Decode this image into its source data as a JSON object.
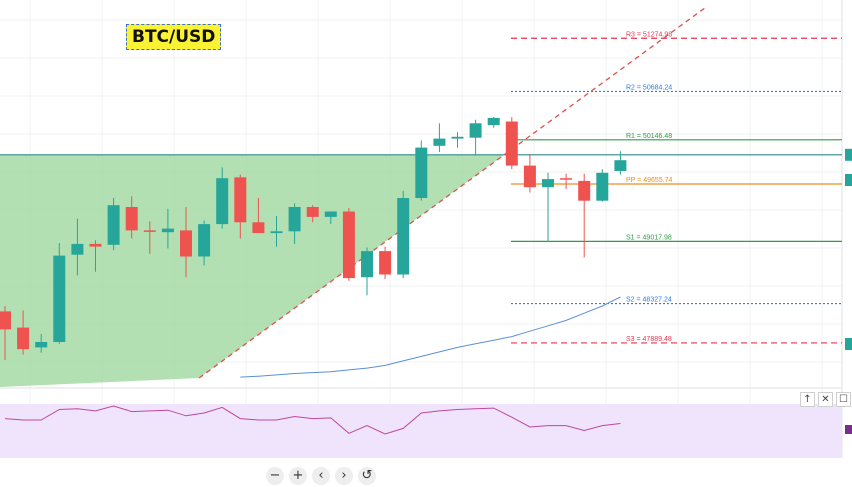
{
  "symbol": "BTC/USD",
  "chart_data": {
    "type": "candlestick",
    "instrument": "BTC/USD",
    "ylim": [
      47400,
      51700
    ],
    "candles": [
      {
        "o": 48240,
        "h": 48300,
        "l": 47700,
        "c": 48040
      },
      {
        "o": 48060,
        "h": 48250,
        "l": 47760,
        "c": 47820
      },
      {
        "o": 47840,
        "h": 47990,
        "l": 47780,
        "c": 47900
      },
      {
        "o": 47900,
        "h": 49000,
        "l": 47880,
        "c": 48860
      },
      {
        "o": 48870,
        "h": 49270,
        "l": 48640,
        "c": 48990
      },
      {
        "o": 48990,
        "h": 49030,
        "l": 48680,
        "c": 48960
      },
      {
        "o": 48980,
        "h": 49500,
        "l": 48920,
        "c": 49420
      },
      {
        "o": 49400,
        "h": 49520,
        "l": 49050,
        "c": 49140
      },
      {
        "o": 49140,
        "h": 49240,
        "l": 48880,
        "c": 49130
      },
      {
        "o": 49120,
        "h": 49380,
        "l": 48940,
        "c": 49160
      },
      {
        "o": 49140,
        "h": 49400,
        "l": 48620,
        "c": 48850
      },
      {
        "o": 48850,
        "h": 49250,
        "l": 48750,
        "c": 49210
      },
      {
        "o": 49210,
        "h": 49840,
        "l": 49160,
        "c": 49720
      },
      {
        "o": 49730,
        "h": 49760,
        "l": 49050,
        "c": 49230
      },
      {
        "o": 49230,
        "h": 49500,
        "l": 49130,
        "c": 49110
      },
      {
        "o": 49110,
        "h": 49300,
        "l": 48960,
        "c": 49130
      },
      {
        "o": 49130,
        "h": 49440,
        "l": 48990,
        "c": 49400
      },
      {
        "o": 49400,
        "h": 49420,
        "l": 49230,
        "c": 49290
      },
      {
        "o": 49290,
        "h": 49350,
        "l": 49210,
        "c": 49350
      },
      {
        "o": 49350,
        "h": 49390,
        "l": 48580,
        "c": 48610
      },
      {
        "o": 48620,
        "h": 48950,
        "l": 48420,
        "c": 48910
      },
      {
        "o": 48910,
        "h": 48960,
        "l": 48600,
        "c": 48650
      },
      {
        "o": 48650,
        "h": 49580,
        "l": 48610,
        "c": 49500
      },
      {
        "o": 49500,
        "h": 50140,
        "l": 49470,
        "c": 50060
      },
      {
        "o": 50080,
        "h": 50330,
        "l": 50010,
        "c": 50160
      },
      {
        "o": 50160,
        "h": 50230,
        "l": 50060,
        "c": 50180
      },
      {
        "o": 50170,
        "h": 50370,
        "l": 49970,
        "c": 50330
      },
      {
        "o": 50310,
        "h": 50400,
        "l": 50280,
        "c": 50390
      },
      {
        "o": 50350,
        "h": 50400,
        "l": 49820,
        "c": 49860
      },
      {
        "o": 49860,
        "h": 49990,
        "l": 49560,
        "c": 49620
      },
      {
        "o": 49620,
        "h": 49780,
        "l": 49010,
        "c": 49710
      },
      {
        "o": 49720,
        "h": 49770,
        "l": 49600,
        "c": 49710
      },
      {
        "o": 49690,
        "h": 49770,
        "l": 48840,
        "c": 49470
      },
      {
        "o": 49470,
        "h": 49820,
        "l": 49460,
        "c": 49780
      },
      {
        "o": 49800,
        "h": 50020,
        "l": 49760,
        "c": 49920
      }
    ],
    "pivots": [
      {
        "label": "R3 = 51274.98",
        "value": 51274.98,
        "color": "#e8334f",
        "style": "dashed"
      },
      {
        "label": "R2 = 50684.24",
        "value": 50684.24,
        "color": "#2e7ae6",
        "style": "dotted"
      },
      {
        "label": "R1 = 50146.48",
        "value": 50146.48,
        "color": "#2e9e44",
        "style": "solid"
      },
      {
        "label": "PP = 49655.74",
        "value": 49655.74,
        "color": "#f08c1e",
        "style": "solid"
      },
      {
        "label": "S1 = 49017.98",
        "value": 49017.98,
        "color": "#2e9e44",
        "style": "solid"
      },
      {
        "label": "S2 = 48327.24",
        "value": 48327.24,
        "color": "#2e7ae6",
        "style": "dotted"
      },
      {
        "label": "S3 = 47889.48",
        "value": 47889.48,
        "color": "#e8334f",
        "style": "dashed"
      }
    ],
    "horizontal_level": 49980,
    "trendline": {
      "from": [
        11,
        47500
      ],
      "to": [
        39,
        51620
      ],
      "color": "#d9534f",
      "style": "dashed"
    },
    "moving_average": {
      "color": "#5b8fd6",
      "values": [
        [
          13,
          47510
        ],
        [
          14,
          47520
        ],
        [
          15,
          47535
        ],
        [
          16,
          47550
        ],
        [
          17,
          47560
        ],
        [
          18,
          47570
        ],
        [
          19,
          47590
        ],
        [
          20,
          47610
        ],
        [
          21,
          47640
        ],
        [
          22,
          47690
        ],
        [
          23,
          47740
        ],
        [
          24,
          47790
        ],
        [
          25,
          47840
        ],
        [
          26,
          47880
        ],
        [
          27,
          47920
        ],
        [
          28,
          47960
        ],
        [
          29,
          48020
        ],
        [
          30,
          48080
        ],
        [
          31,
          48140
        ],
        [
          32,
          48220
        ],
        [
          33,
          48300
        ],
        [
          34,
          48400
        ]
      ]
    },
    "oscillator": {
      "color": "#c0479e",
      "ylim": [
        0,
        100
      ],
      "values": [
        62,
        60,
        60,
        75,
        76,
        73,
        80,
        72,
        73,
        74,
        66,
        70,
        78,
        62,
        60,
        60,
        65,
        62,
        63,
        41,
        52,
        40,
        48,
        70,
        73,
        75,
        76,
        77,
        64,
        50,
        52,
        52,
        45,
        52,
        55
      ]
    },
    "colors": {
      "up": "#26a69a",
      "down": "#ef5350",
      "channel_fill": "#a5dba4",
      "oscillator_band": "#efe4fb",
      "level_line": "#2e8b8f",
      "scale_marker_teal": "#26a69a",
      "scale_marker_purple": "#7b2d8e"
    },
    "grid": true
  },
  "nav": {
    "zoom_out": "−",
    "zoom_in": "+",
    "prev": "‹",
    "next": "›",
    "reset": "↺"
  },
  "pane_controls": {
    "up": "↑",
    "close": "✕",
    "max": "☐"
  },
  "icons": {
    "nav": [
      "minus-icon",
      "plus-icon",
      "chevron-left-icon",
      "chevron-right-icon",
      "reset-icon"
    ],
    "pane": [
      "arrow-up-icon",
      "close-icon",
      "maximize-icon"
    ]
  }
}
